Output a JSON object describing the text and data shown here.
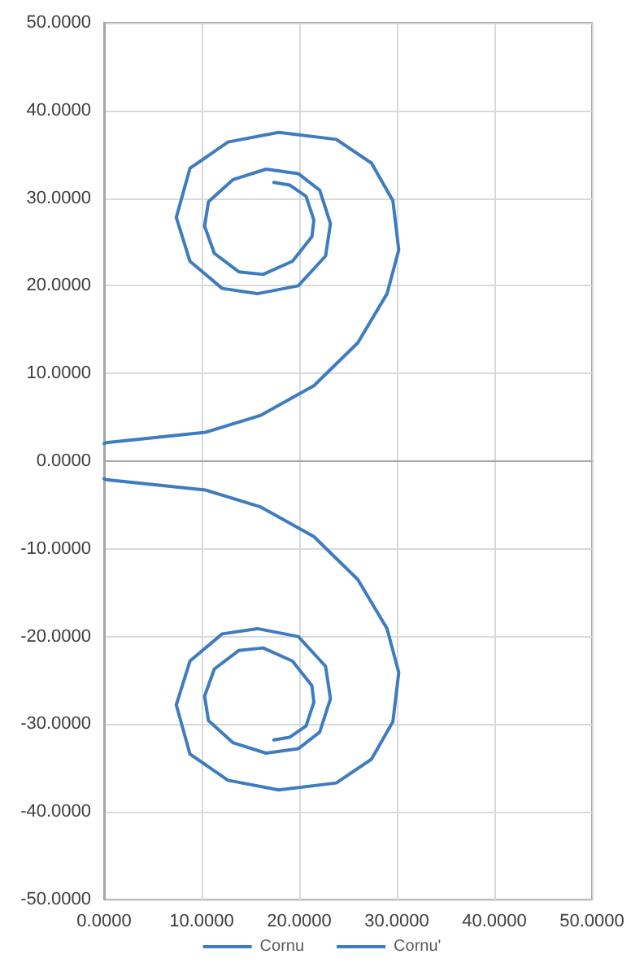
{
  "chart_data": {
    "type": "line",
    "marker": "none",
    "line_style": "solid",
    "grid": true,
    "legend": "bottom",
    "x": [
      0,
      0.2,
      10.4,
      16,
      21.5,
      26,
      29,
      30.2,
      29.6,
      27.4,
      23.8,
      17.9,
      12.7,
      8.8,
      7.4,
      8.8,
      12.1,
      15.7,
      19.9,
      22.7,
      23.2,
      22.1,
      19.9,
      16.6,
      13.2,
      10.7,
      10.3,
      11.3,
      13.8,
      16.3,
      19.3,
      21.3,
      21.5,
      20.7,
      19,
      17.4
    ],
    "series": [
      {
        "name": "Cornu",
        "color": "#3f7cbf",
        "values": [
          2.0,
          2.1,
          3.3,
          5.2,
          8.6,
          13.5,
          19.1,
          24.1,
          29.7,
          34,
          36.7,
          37.5,
          36.4,
          33.4,
          27.8,
          22.8,
          19.7,
          19.1,
          20.0,
          23.4,
          27.1,
          30.9,
          32.8,
          33.3,
          32.1,
          29.6,
          26.8,
          23.7,
          21.6,
          21.3,
          22.8,
          25.6,
          27.5,
          30.2,
          31.5,
          31.8
        ]
      },
      {
        "name": "Cornu'",
        "color": "#3f7cbf",
        "values": [
          -2.0,
          -2.1,
          -3.3,
          -5.2,
          -8.6,
          -13.5,
          -19.1,
          -24.1,
          -29.7,
          -34,
          -36.7,
          -37.5,
          -36.4,
          -33.4,
          -27.8,
          -22.8,
          -19.7,
          -19.1,
          -20.0,
          -23.4,
          -27.1,
          -30.9,
          -32.8,
          -33.3,
          -32.1,
          -29.6,
          -26.8,
          -23.7,
          -21.6,
          -21.3,
          -22.8,
          -25.6,
          -27.5,
          -30.2,
          -31.5,
          -31.8
        ]
      }
    ],
    "xlim": [
      0,
      50
    ],
    "xticks": [
      {
        "value": 0,
        "label": "0.0000"
      },
      {
        "value": 10,
        "label": "10.0000"
      },
      {
        "value": 20,
        "label": "20.0000"
      },
      {
        "value": 30,
        "label": "30.0000"
      },
      {
        "value": 40,
        "label": "40.0000"
      },
      {
        "value": 50,
        "label": "50.0000"
      }
    ],
    "ylim": [
      -50,
      50
    ],
    "yticks": [
      {
        "value": -50,
        "label": "-50.0000"
      },
      {
        "value": -40,
        "label": "-40.0000"
      },
      {
        "value": -30,
        "label": "-30.0000"
      },
      {
        "value": -20,
        "label": "-20.0000"
      },
      {
        "value": -10,
        "label": "-10.0000"
      },
      {
        "value": 0,
        "label": "0.0000"
      },
      {
        "value": 10,
        "label": "10.0000"
      },
      {
        "value": 20,
        "label": "20.0000"
      },
      {
        "value": 30,
        "label": "30.0000"
      },
      {
        "value": 40,
        "label": "40.0000"
      },
      {
        "value": 50,
        "label": "50.0000"
      }
    ]
  }
}
